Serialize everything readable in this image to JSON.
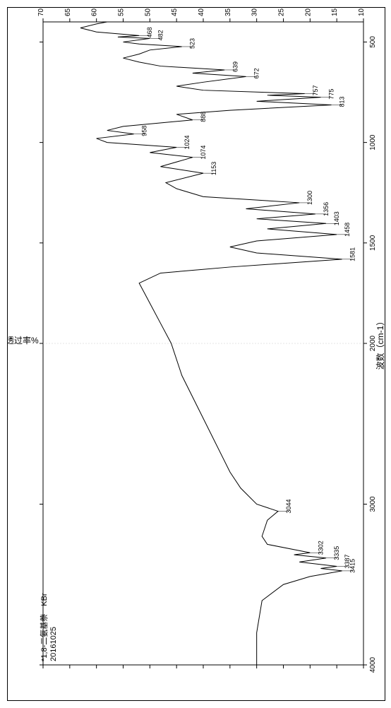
{
  "chart": {
    "type": "line",
    "title_line1": "*1,8-二氨基萘　KBr",
    "title_line2": "20161025",
    "title_fontsize": 11,
    "xlabel": "波数（cm-1）",
    "ylabel": "%透过率%",
    "label_fontsize": 12,
    "background_color": "#ffffff",
    "line_color": "#000000",
    "border_color": "#000000",
    "grid_color": "#cccccc",
    "x_axis": {
      "min": 4000,
      "max": 400,
      "ticks": [
        4000,
        3000,
        2000,
        1500,
        1000,
        500
      ],
      "reversed": true,
      "vertical_grid_at": 2000
    },
    "y_axis": {
      "min": 10,
      "max": 70,
      "ticks": [
        10,
        15,
        20,
        25,
        30,
        35,
        40,
        45,
        50,
        55,
        60,
        65,
        70
      ]
    },
    "peaks": [
      {
        "wn": 3415,
        "t": 14
      },
      {
        "wn": 3387,
        "t": 15
      },
      {
        "wn": 3335,
        "t": 17
      },
      {
        "wn": 3302,
        "t": 20
      },
      {
        "wn": 3044,
        "t": 26
      },
      {
        "wn": 1581,
        "t": 14
      },
      {
        "wn": 1458,
        "t": 15
      },
      {
        "wn": 1403,
        "t": 17
      },
      {
        "wn": 1356,
        "t": 19
      },
      {
        "wn": 1300,
        "t": 22
      },
      {
        "wn": 1153,
        "t": 40
      },
      {
        "wn": 1074,
        "t": 42
      },
      {
        "wn": 1024,
        "t": 45
      },
      {
        "wn": 958,
        "t": 53
      },
      {
        "wn": 888,
        "t": 42
      },
      {
        "wn": 813,
        "t": 16
      },
      {
        "wn": 775,
        "t": 18
      },
      {
        "wn": 757,
        "t": 21
      },
      {
        "wn": 672,
        "t": 32
      },
      {
        "wn": 639,
        "t": 36
      },
      {
        "wn": 523,
        "t": 44
      },
      {
        "wn": 482,
        "t": 50
      },
      {
        "wn": 468,
        "t": 52
      }
    ],
    "spectrum_points": [
      {
        "wn": 4000,
        "t": 30
      },
      {
        "wn": 3800,
        "t": 30
      },
      {
        "wn": 3600,
        "t": 29
      },
      {
        "wn": 3500,
        "t": 25
      },
      {
        "wn": 3450,
        "t": 20
      },
      {
        "wn": 3415,
        "t": 14
      },
      {
        "wn": 3400,
        "t": 18
      },
      {
        "wn": 3387,
        "t": 15
      },
      {
        "wn": 3360,
        "t": 22
      },
      {
        "wn": 3335,
        "t": 17
      },
      {
        "wn": 3315,
        "t": 23
      },
      {
        "wn": 3302,
        "t": 20
      },
      {
        "wn": 3250,
        "t": 28
      },
      {
        "wn": 3200,
        "t": 29
      },
      {
        "wn": 3100,
        "t": 28
      },
      {
        "wn": 3044,
        "t": 26
      },
      {
        "wn": 3000,
        "t": 30
      },
      {
        "wn": 2900,
        "t": 33
      },
      {
        "wn": 2800,
        "t": 35
      },
      {
        "wn": 2600,
        "t": 38
      },
      {
        "wn": 2400,
        "t": 41
      },
      {
        "wn": 2200,
        "t": 44
      },
      {
        "wn": 2000,
        "t": 46
      },
      {
        "wn": 1900,
        "t": 48
      },
      {
        "wn": 1800,
        "t": 50
      },
      {
        "wn": 1750,
        "t": 51
      },
      {
        "wn": 1700,
        "t": 52
      },
      {
        "wn": 1650,
        "t": 48
      },
      {
        "wn": 1620,
        "t": 35
      },
      {
        "wn": 1581,
        "t": 14
      },
      {
        "wn": 1550,
        "t": 30
      },
      {
        "wn": 1520,
        "t": 35
      },
      {
        "wn": 1490,
        "t": 30
      },
      {
        "wn": 1458,
        "t": 15
      },
      {
        "wn": 1430,
        "t": 28
      },
      {
        "wn": 1403,
        "t": 17
      },
      {
        "wn": 1380,
        "t": 30
      },
      {
        "wn": 1356,
        "t": 19
      },
      {
        "wn": 1330,
        "t": 32
      },
      {
        "wn": 1300,
        "t": 22
      },
      {
        "wn": 1270,
        "t": 40
      },
      {
        "wn": 1230,
        "t": 45
      },
      {
        "wn": 1200,
        "t": 47
      },
      {
        "wn": 1153,
        "t": 40
      },
      {
        "wn": 1120,
        "t": 48
      },
      {
        "wn": 1074,
        "t": 42
      },
      {
        "wn": 1050,
        "t": 50
      },
      {
        "wn": 1024,
        "t": 45
      },
      {
        "wn": 1000,
        "t": 58
      },
      {
        "wn": 980,
        "t": 60
      },
      {
        "wn": 958,
        "t": 53
      },
      {
        "wn": 940,
        "t": 58
      },
      {
        "wn": 920,
        "t": 55
      },
      {
        "wn": 888,
        "t": 42
      },
      {
        "wn": 860,
        "t": 45
      },
      {
        "wn": 840,
        "t": 35
      },
      {
        "wn": 813,
        "t": 16
      },
      {
        "wn": 795,
        "t": 30
      },
      {
        "wn": 775,
        "t": 18
      },
      {
        "wn": 765,
        "t": 28
      },
      {
        "wn": 757,
        "t": 21
      },
      {
        "wn": 740,
        "t": 40
      },
      {
        "wn": 720,
        "t": 45
      },
      {
        "wn": 700,
        "t": 40
      },
      {
        "wn": 672,
        "t": 32
      },
      {
        "wn": 655,
        "t": 42
      },
      {
        "wn": 639,
        "t": 36
      },
      {
        "wn": 620,
        "t": 48
      },
      {
        "wn": 600,
        "t": 52
      },
      {
        "wn": 580,
        "t": 55
      },
      {
        "wn": 560,
        "t": 52
      },
      {
        "wn": 540,
        "t": 50
      },
      {
        "wn": 523,
        "t": 44
      },
      {
        "wn": 510,
        "t": 52
      },
      {
        "wn": 500,
        "t": 55
      },
      {
        "wn": 482,
        "t": 50
      },
      {
        "wn": 475,
        "t": 56
      },
      {
        "wn": 468,
        "t": 52
      },
      {
        "wn": 450,
        "t": 60
      },
      {
        "wn": 430,
        "t": 63
      },
      {
        "wn": 410,
        "t": 60
      },
      {
        "wn": 400,
        "t": 58
      }
    ]
  }
}
